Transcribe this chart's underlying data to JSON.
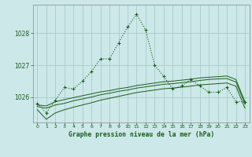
{
  "title": "Graphe pression niveau de la mer (hPa)",
  "background_color": "#cce8e8",
  "grid_color": "#aacccc",
  "line_color": "#1a5c1a",
  "text_color": "#1a5c1a",
  "hours": [
    0,
    1,
    2,
    3,
    4,
    5,
    6,
    7,
    8,
    9,
    10,
    11,
    12,
    13,
    14,
    15,
    16,
    17,
    18,
    19,
    20,
    21,
    22,
    23
  ],
  "main_line": [
    1025.8,
    1025.5,
    1025.9,
    1026.3,
    1026.25,
    1026.5,
    1026.8,
    1027.2,
    1027.2,
    1027.7,
    1028.2,
    1028.6,
    1028.1,
    1027.0,
    1026.65,
    1026.25,
    1026.35,
    1026.55,
    1026.35,
    1026.15,
    1026.15,
    1026.3,
    1025.85,
    1025.85
  ],
  "ref_line1": [
    1025.75,
    1025.72,
    1025.85,
    1025.92,
    1025.98,
    1026.04,
    1026.1,
    1026.16,
    1026.2,
    1026.26,
    1026.3,
    1026.36,
    1026.4,
    1026.44,
    1026.48,
    1026.5,
    1026.53,
    1026.56,
    1026.6,
    1026.62,
    1026.64,
    1026.66,
    1026.55,
    1025.85
  ],
  "ref_line2": [
    1025.7,
    1025.65,
    1025.75,
    1025.8,
    1025.88,
    1025.94,
    1026.0,
    1026.07,
    1026.12,
    1026.18,
    1026.22,
    1026.28,
    1026.32,
    1026.36,
    1026.4,
    1026.42,
    1026.45,
    1026.48,
    1026.52,
    1026.55,
    1026.57,
    1026.58,
    1026.47,
    1025.78
  ],
  "ref_line3": [
    1025.6,
    1025.3,
    1025.5,
    1025.6,
    1025.68,
    1025.75,
    1025.82,
    1025.9,
    1025.96,
    1026.02,
    1026.08,
    1026.14,
    1026.18,
    1026.22,
    1026.26,
    1026.28,
    1026.31,
    1026.34,
    1026.38,
    1026.4,
    1026.42,
    1026.44,
    1026.34,
    1025.65
  ],
  "ylim": [
    1025.2,
    1028.9
  ],
  "yticks": [
    1026,
    1027,
    1028
  ],
  "figsize": [
    3.2,
    2.0
  ],
  "dpi": 100
}
